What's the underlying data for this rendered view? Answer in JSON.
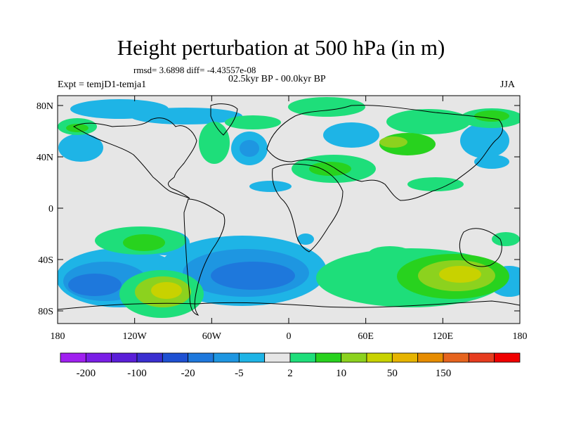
{
  "figure": {
    "title": "Height perturbation at 500 hPa (in m)",
    "stats": "rmsd= 3.6898 diff= -4.43557e-08",
    "period": "02.5kyr BP - 00.0kyr BP",
    "experiment": "Expt = temjD1-temja1",
    "season": "JJA"
  },
  "map": {
    "lat_ticks": [
      "80N",
      "40N",
      "0",
      "40S",
      "80S"
    ],
    "lon_ticks": [
      "180",
      "120W",
      "60W",
      "0",
      "60E",
      "120E",
      "180"
    ],
    "background_color": "#e6e6e6"
  },
  "colorbar": {
    "colors": [
      "#a020f0",
      "#7a1ee6",
      "#5a1ed8",
      "#3a2fd0",
      "#1e50d2",
      "#1e78dc",
      "#1e96e1",
      "#1eb4e6",
      "#e6e6e6",
      "#1ede7a",
      "#28d21e",
      "#8cd21e",
      "#c8d200",
      "#e6b400",
      "#e68c00",
      "#e6641e",
      "#e63c1e",
      "#f00000"
    ],
    "labels": [
      "-200",
      "-100",
      "-20",
      "-5",
      "2",
      "10",
      "50",
      "150"
    ]
  }
}
